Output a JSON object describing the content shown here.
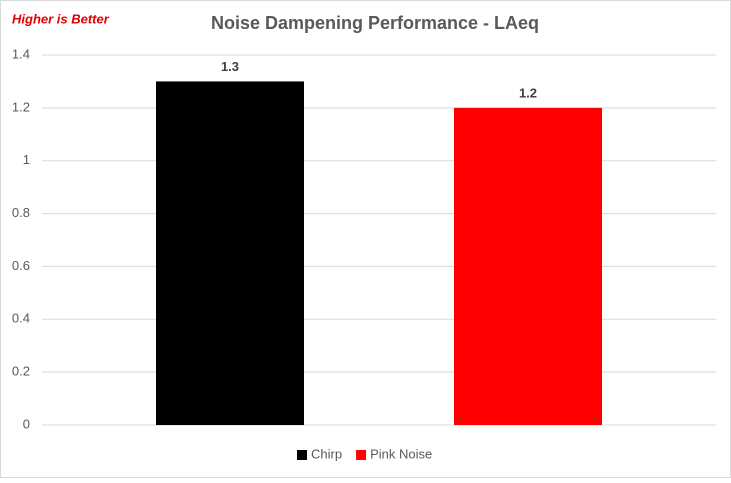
{
  "chart_data": {
    "type": "bar",
    "title": "Noise Dampening Performance - LAeq",
    "annotation": "Higher is Better",
    "categories": [
      null
    ],
    "series": [
      {
        "name": "Chirp",
        "color": "#000000",
        "values": [
          1.3
        ]
      },
      {
        "name": "Pink Noise",
        "color": "#ff0000",
        "values": [
          1.2
        ]
      }
    ],
    "ylim": [
      0,
      1.4
    ],
    "yticks": [
      0,
      0.2,
      0.4,
      0.6,
      0.8,
      1,
      1.2,
      1.4
    ],
    "grid": true,
    "legend": "bottom"
  }
}
